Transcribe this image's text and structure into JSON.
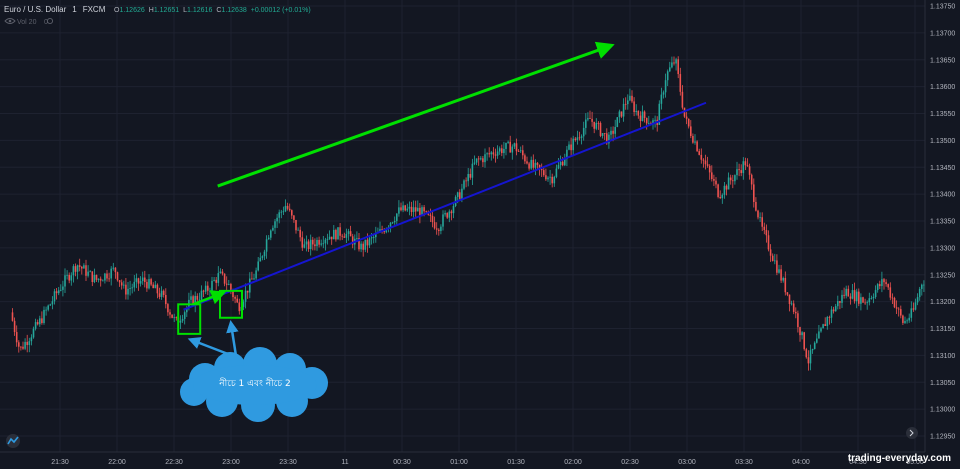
{
  "header": {
    "symbol": "Euro / U.S. Dollar",
    "interval": "1",
    "source": "FXCM",
    "open_label": "O",
    "open": "1.12626",
    "high_label": "H",
    "high": "1.12651",
    "low_label": "L",
    "low": "1.12616",
    "close_label": "C",
    "close": "1.12638",
    "change": "+0.00012 (+0.01%)",
    "indicator": "Vol 20",
    "indicator_count": "0"
  },
  "annotation": {
    "cloud_text": "নীচে 1 এবং নীচে 2"
  },
  "watermark": "trading-everyday.com",
  "colors": {
    "background": "#131722",
    "grid": "#1e2230",
    "up_candle": "#26a69a",
    "down_candle": "#ef5350",
    "trend_arrow": "#00e000",
    "trendline": "#1515d0",
    "box": "#00e000",
    "cloud": "#2f9ae0",
    "pointer_arrows": "#2f9ae0"
  },
  "icons": [
    "tradingview-logo-icon",
    "eye-icon",
    "settings-icon",
    "scroll-right-icon"
  ],
  "chart_data": {
    "type": "candlestick",
    "title": "",
    "xlabel": "",
    "ylabel": "",
    "ylim": [
      1.1295,
      1.1375
    ],
    "y_ticks": [
      "1.13750",
      "1.13700",
      "1.13650",
      "1.13600",
      "1.13550",
      "1.13500",
      "1.13450",
      "1.13400",
      "1.13350",
      "1.13300",
      "1.13250",
      "1.13200",
      "1.13150",
      "1.13100",
      "1.13050",
      "1.13000",
      "1.12950"
    ],
    "x_ticks": [
      "21:30",
      "22:00",
      "22:30",
      "23:00",
      "23:30",
      "11",
      "00:30",
      "01:00",
      "01:30",
      "02:00",
      "02:30",
      "03:00",
      "03:30",
      "04:00",
      "04:30",
      "05:00"
    ],
    "price_path": [
      [
        "21:05",
        1.1318
      ],
      [
        "21:10",
        1.1311
      ],
      [
        "21:20",
        1.1316
      ],
      [
        "21:30",
        1.1322
      ],
      [
        "21:40",
        1.1327
      ],
      [
        "21:50",
        1.1324
      ],
      [
        "22:00",
        1.1326
      ],
      [
        "22:05",
        1.1322
      ],
      [
        "22:15",
        1.1324
      ],
      [
        "22:25",
        1.1321
      ],
      [
        "22:32",
        1.1316
      ],
      [
        "22:40",
        1.132
      ],
      [
        "22:48",
        1.1322
      ],
      [
        "22:55",
        1.1325
      ],
      [
        "23:00",
        1.1323
      ],
      [
        "23:05",
        1.1319
      ],
      [
        "23:15",
        1.1326
      ],
      [
        "23:22",
        1.1334
      ],
      [
        "23:30",
        1.1338
      ],
      [
        "23:40",
        1.133
      ],
      [
        "23:50",
        1.1332
      ],
      [
        "00:00",
        1.1333
      ],
      [
        "00:10",
        1.133
      ],
      [
        "00:20",
        1.1333
      ],
      [
        "00:30",
        1.1337
      ],
      [
        "00:40",
        1.1337
      ],
      [
        "00:50",
        1.1334
      ],
      [
        "01:00",
        1.1339
      ],
      [
        "01:10",
        1.1346
      ],
      [
        "01:20",
        1.1348
      ],
      [
        "01:30",
        1.1349
      ],
      [
        "01:40",
        1.1345
      ],
      [
        "01:50",
        1.1343
      ],
      [
        "02:00",
        1.1349
      ],
      [
        "02:10",
        1.1354
      ],
      [
        "02:20",
        1.135
      ],
      [
        "02:30",
        1.1358
      ],
      [
        "02:35",
        1.1355
      ],
      [
        "02:45",
        1.1353
      ],
      [
        "02:50",
        1.1362
      ],
      [
        "02:55",
        1.1365
      ],
      [
        "03:00",
        1.1354
      ],
      [
        "03:10",
        1.1346
      ],
      [
        "03:18",
        1.134
      ],
      [
        "03:25",
        1.1343
      ],
      [
        "03:32",
        1.1346
      ],
      [
        "03:40",
        1.1334
      ],
      [
        "03:50",
        1.1325
      ],
      [
        "03:58",
        1.1318
      ],
      [
        "04:05",
        1.1309
      ],
      [
        "04:15",
        1.1317
      ],
      [
        "04:25",
        1.1322
      ],
      [
        "04:35",
        1.132
      ],
      [
        "04:45",
        1.1324
      ],
      [
        "04:55",
        1.1316
      ],
      [
        "05:00",
        1.1318
      ],
      [
        "05:05",
        1.1324
      ]
    ],
    "trendline": [
      [
        "22:35",
        1.13185
      ],
      [
        "03:10",
        1.1357
      ]
    ],
    "trend_arrow": [
      [
        "22:53",
        1.13415
      ],
      [
        "02:19",
        1.13675
      ]
    ],
    "short_arrow": [
      [
        "22:40",
        1.13195
      ],
      [
        "22:55",
        1.13215
      ]
    ],
    "highlight_boxes": [
      {
        "time": "22:38",
        "low": 1.1314,
        "high": 1.13195
      },
      {
        "time": "23:00",
        "low": 1.1317,
        "high": 1.1322
      }
    ]
  }
}
